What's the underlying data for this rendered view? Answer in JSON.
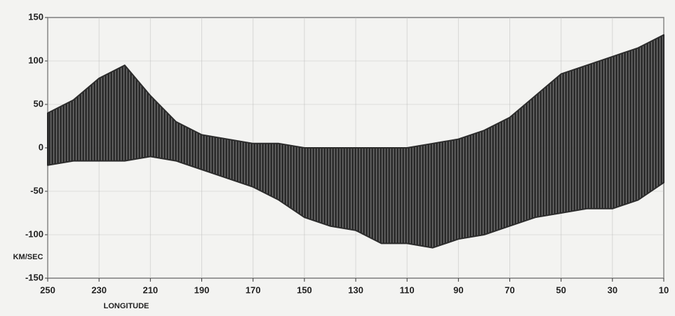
{
  "chart_data": {
    "type": "range-area",
    "xlabel": "LONGITUDE",
    "ylabel": "KM/SEC",
    "x": [
      250,
      240,
      230,
      220,
      210,
      200,
      190,
      180,
      170,
      160,
      150,
      140,
      130,
      120,
      110,
      100,
      90,
      80,
      70,
      60,
      50,
      40,
      30,
      20,
      10
    ],
    "upper": [
      40,
      55,
      80,
      95,
      60,
      30,
      15,
      10,
      5,
      5,
      0,
      0,
      0,
      0,
      0,
      5,
      10,
      20,
      35,
      60,
      85,
      95,
      105,
      115,
      130
    ],
    "lower": [
      -20,
      -15,
      -15,
      -15,
      -10,
      -15,
      -25,
      -35,
      -45,
      -60,
      -80,
      -90,
      -95,
      -110,
      -110,
      -115,
      -105,
      -100,
      -90,
      -80,
      -75,
      -70,
      -70,
      -60,
      -40
    ],
    "color": "#1c1c1c",
    "xlim": [
      250,
      10
    ],
    "xticks": [
      250,
      230,
      210,
      190,
      170,
      150,
      130,
      110,
      90,
      70,
      50,
      30,
      10
    ],
    "ylim": [
      -150,
      150
    ],
    "yticks": [
      -150,
      -100,
      -50,
      0,
      50,
      100,
      150
    ],
    "grid": true
  }
}
